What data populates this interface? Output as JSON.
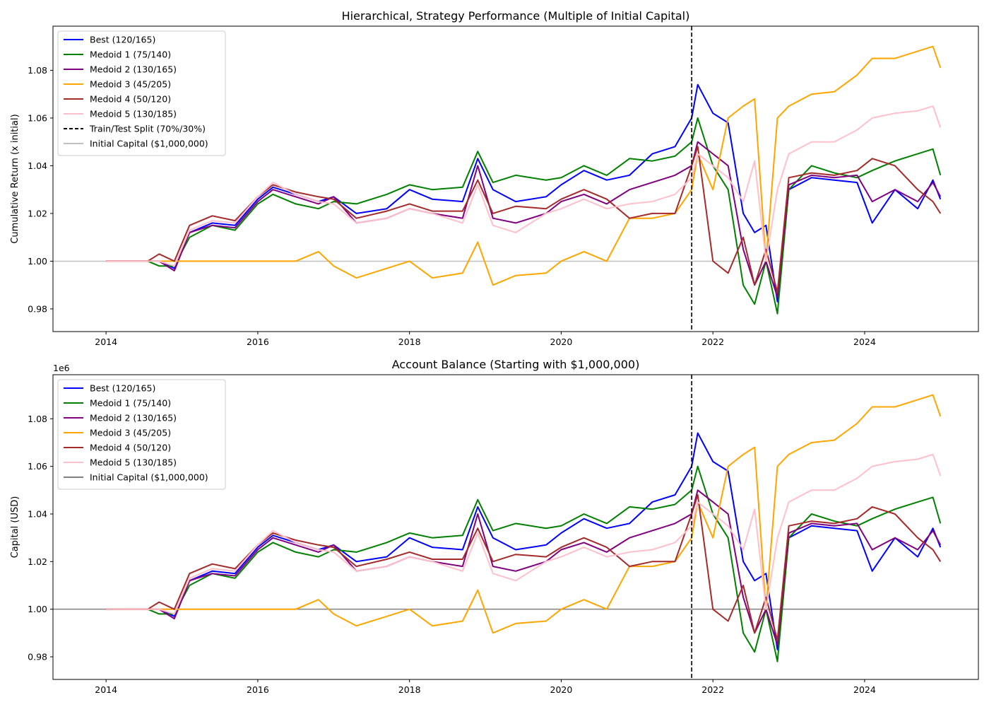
{
  "chart_data": [
    {
      "type": "line",
      "title": "Hierarchical, Strategy Performance (Multiple of Initial Capital)",
      "xlabel": "",
      "ylabel": "Cumulative Return (x initial)",
      "offset_text": "",
      "xlim": [
        2013.3,
        2025.5
      ],
      "ylim": [
        0.9705,
        1.0985
      ],
      "xticks": [
        "2014",
        "2016",
        "2018",
        "2020",
        "2022",
        "2024"
      ],
      "yticks": [
        "0.98",
        "1.00",
        "1.02",
        "1.04",
        "1.06",
        "1.08"
      ],
      "grid": false,
      "legend_position": "upper-left",
      "split_line": {
        "x": 2021.72,
        "label": "Train/Test Split (70%/30%)",
        "color": "#000000"
      },
      "initial_line": {
        "y": 1.0,
        "label": "Initial Capital ($1,000,000)",
        "color": "#c0c0c0"
      },
      "x": [
        2014.0,
        2014.55,
        2014.7,
        2014.9,
        2015.1,
        2015.4,
        2015.7,
        2016.0,
        2016.2,
        2016.5,
        2016.8,
        2017.0,
        2017.3,
        2017.7,
        2018.0,
        2018.3,
        2018.7,
        2018.9,
        2019.1,
        2019.4,
        2019.8,
        2020.0,
        2020.3,
        2020.6,
        2020.9,
        2021.2,
        2021.5,
        2021.72,
        2021.8,
        2022.0,
        2022.2,
        2022.4,
        2022.55,
        2022.7,
        2022.85,
        2023.0,
        2023.3,
        2023.6,
        2023.9,
        2024.1,
        2024.4,
        2024.7,
        2024.9,
        2025.0
      ],
      "series": [
        {
          "name": "Best (120/165)",
          "color": "#0000ff",
          "values": [
            1.0,
            1.0,
            1.0,
            0.997,
            1.012,
            1.016,
            1.015,
            1.026,
            1.031,
            1.028,
            1.025,
            1.027,
            1.02,
            1.022,
            1.03,
            1.026,
            1.025,
            1.043,
            1.03,
            1.025,
            1.027,
            1.032,
            1.038,
            1.034,
            1.036,
            1.045,
            1.048,
            1.06,
            1.074,
            1.062,
            1.058,
            1.02,
            1.012,
            1.015,
            0.983,
            1.03,
            1.035,
            1.034,
            1.033,
            1.016,
            1.03,
            1.022,
            1.034,
            1.026
          ]
        },
        {
          "name": "Medoid 1 (75/140)",
          "color": "#008000",
          "values": [
            1.0,
            1.0,
            0.998,
            0.998,
            1.01,
            1.015,
            1.013,
            1.024,
            1.028,
            1.024,
            1.022,
            1.025,
            1.024,
            1.028,
            1.032,
            1.03,
            1.031,
            1.046,
            1.033,
            1.036,
            1.034,
            1.035,
            1.04,
            1.036,
            1.043,
            1.042,
            1.044,
            1.05,
            1.06,
            1.04,
            1.03,
            0.99,
            0.982,
            1.0,
            0.978,
            1.03,
            1.04,
            1.037,
            1.035,
            1.038,
            1.042,
            1.045,
            1.047,
            1.036
          ]
        },
        {
          "name": "Medoid 2 (130/165)",
          "color": "#800080",
          "values": [
            1.0,
            1.0,
            1.0,
            0.996,
            1.012,
            1.015,
            1.014,
            1.025,
            1.03,
            1.027,
            1.024,
            1.027,
            1.016,
            1.018,
            1.022,
            1.02,
            1.018,
            1.04,
            1.018,
            1.016,
            1.02,
            1.025,
            1.028,
            1.024,
            1.03,
            1.033,
            1.036,
            1.04,
            1.05,
            1.045,
            1.04,
            1.005,
            0.99,
            1.0,
            0.985,
            1.032,
            1.036,
            1.035,
            1.036,
            1.025,
            1.03,
            1.025,
            1.033,
            1.027
          ]
        },
        {
          "name": "Medoid 3 (45/205)",
          "color": "#ffa500",
          "values": [
            1.0,
            1.0,
            1.0,
            1.0,
            1.0,
            1.0,
            1.0,
            1.0,
            1.0,
            1.0,
            1.004,
            0.998,
            0.993,
            0.997,
            1.0,
            0.993,
            0.995,
            1.008,
            0.99,
            0.994,
            0.995,
            1.0,
            1.004,
            1.0,
            1.018,
            1.018,
            1.02,
            1.03,
            1.045,
            1.03,
            1.06,
            1.065,
            1.068,
            1.0,
            1.06,
            1.065,
            1.07,
            1.071,
            1.078,
            1.085,
            1.085,
            1.088,
            1.09,
            1.081
          ]
        },
        {
          "name": "Medoid 4 (50/120)",
          "color": "#a52a2a",
          "values": [
            1.0,
            1.0,
            1.003,
            1.0,
            1.015,
            1.019,
            1.017,
            1.027,
            1.032,
            1.029,
            1.027,
            1.026,
            1.018,
            1.021,
            1.024,
            1.021,
            1.021,
            1.034,
            1.02,
            1.023,
            1.022,
            1.026,
            1.03,
            1.026,
            1.018,
            1.02,
            1.02,
            1.04,
            1.048,
            1.0,
            0.995,
            1.01,
            0.99,
            1.005,
            0.987,
            1.035,
            1.037,
            1.036,
            1.038,
            1.043,
            1.04,
            1.03,
            1.025,
            1.02
          ]
        },
        {
          "name": "Medoid 5 (130/185)",
          "color": "#ffc0cb",
          "values": [
            1.0,
            1.0,
            1.0,
            0.998,
            1.013,
            1.017,
            1.016,
            1.027,
            1.033,
            1.028,
            1.025,
            1.024,
            1.016,
            1.018,
            1.022,
            1.02,
            1.016,
            1.032,
            1.015,
            1.012,
            1.02,
            1.022,
            1.026,
            1.022,
            1.024,
            1.025,
            1.028,
            1.035,
            1.045,
            1.04,
            1.035,
            1.025,
            1.042,
            1.0,
            1.03,
            1.045,
            1.05,
            1.05,
            1.055,
            1.06,
            1.062,
            1.063,
            1.065,
            1.056
          ]
        }
      ]
    },
    {
      "type": "line",
      "title": "Account Balance (Starting with $1,000,000)",
      "xlabel": "",
      "ylabel": "Capital (USD)",
      "offset_text": "1e6",
      "xlim": [
        2013.3,
        2025.5
      ],
      "ylim": [
        0.9705,
        1.0985
      ],
      "xticks": [
        "2014",
        "2016",
        "2018",
        "2020",
        "2022",
        "2024"
      ],
      "yticks": [
        "0.98",
        "1.00",
        "1.02",
        "1.04",
        "1.06",
        "1.08"
      ],
      "grid": false,
      "legend_position": "upper-left",
      "split_line": {
        "x": 2021.72,
        "label": "",
        "color": "#000000"
      },
      "initial_line": {
        "y": 1.0,
        "label": "Initial Capital ($1,000,000)",
        "color": "#808080"
      },
      "x": [
        2014.0,
        2014.55,
        2014.7,
        2014.9,
        2015.1,
        2015.4,
        2015.7,
        2016.0,
        2016.2,
        2016.5,
        2016.8,
        2017.0,
        2017.3,
        2017.7,
        2018.0,
        2018.3,
        2018.7,
        2018.9,
        2019.1,
        2019.4,
        2019.8,
        2020.0,
        2020.3,
        2020.6,
        2020.9,
        2021.2,
        2021.5,
        2021.72,
        2021.8,
        2022.0,
        2022.2,
        2022.4,
        2022.55,
        2022.7,
        2022.85,
        2023.0,
        2023.3,
        2023.6,
        2023.9,
        2024.1,
        2024.4,
        2024.7,
        2024.9,
        2025.0
      ],
      "series": [
        {
          "name": "Best (120/165)",
          "color": "#0000ff",
          "values": [
            1.0,
            1.0,
            1.0,
            0.997,
            1.012,
            1.016,
            1.015,
            1.026,
            1.031,
            1.028,
            1.025,
            1.027,
            1.02,
            1.022,
            1.03,
            1.026,
            1.025,
            1.043,
            1.03,
            1.025,
            1.027,
            1.032,
            1.038,
            1.034,
            1.036,
            1.045,
            1.048,
            1.06,
            1.074,
            1.062,
            1.058,
            1.02,
            1.012,
            1.015,
            0.983,
            1.03,
            1.035,
            1.034,
            1.033,
            1.016,
            1.03,
            1.022,
            1.034,
            1.026
          ]
        },
        {
          "name": "Medoid 1 (75/140)",
          "color": "#008000",
          "values": [
            1.0,
            1.0,
            0.998,
            0.998,
            1.01,
            1.015,
            1.013,
            1.024,
            1.028,
            1.024,
            1.022,
            1.025,
            1.024,
            1.028,
            1.032,
            1.03,
            1.031,
            1.046,
            1.033,
            1.036,
            1.034,
            1.035,
            1.04,
            1.036,
            1.043,
            1.042,
            1.044,
            1.05,
            1.06,
            1.04,
            1.03,
            0.99,
            0.982,
            1.0,
            0.978,
            1.03,
            1.04,
            1.037,
            1.035,
            1.038,
            1.042,
            1.045,
            1.047,
            1.036
          ]
        },
        {
          "name": "Medoid 2 (130/165)",
          "color": "#800080",
          "values": [
            1.0,
            1.0,
            1.0,
            0.996,
            1.012,
            1.015,
            1.014,
            1.025,
            1.03,
            1.027,
            1.024,
            1.027,
            1.016,
            1.018,
            1.022,
            1.02,
            1.018,
            1.04,
            1.018,
            1.016,
            1.02,
            1.025,
            1.028,
            1.024,
            1.03,
            1.033,
            1.036,
            1.04,
            1.05,
            1.045,
            1.04,
            1.005,
            0.99,
            1.0,
            0.985,
            1.032,
            1.036,
            1.035,
            1.036,
            1.025,
            1.03,
            1.025,
            1.033,
            1.027
          ]
        },
        {
          "name": "Medoid 3 (45/205)",
          "color": "#ffa500",
          "values": [
            1.0,
            1.0,
            1.0,
            1.0,
            1.0,
            1.0,
            1.0,
            1.0,
            1.0,
            1.0,
            1.004,
            0.998,
            0.993,
            0.997,
            1.0,
            0.993,
            0.995,
            1.008,
            0.99,
            0.994,
            0.995,
            1.0,
            1.004,
            1.0,
            1.018,
            1.018,
            1.02,
            1.03,
            1.045,
            1.03,
            1.06,
            1.065,
            1.068,
            1.0,
            1.06,
            1.065,
            1.07,
            1.071,
            1.078,
            1.085,
            1.085,
            1.088,
            1.09,
            1.081
          ]
        },
        {
          "name": "Medoid 4 (50/120)",
          "color": "#a52a2a",
          "values": [
            1.0,
            1.0,
            1.003,
            1.0,
            1.015,
            1.019,
            1.017,
            1.027,
            1.032,
            1.029,
            1.027,
            1.026,
            1.018,
            1.021,
            1.024,
            1.021,
            1.021,
            1.034,
            1.02,
            1.023,
            1.022,
            1.026,
            1.03,
            1.026,
            1.018,
            1.02,
            1.02,
            1.04,
            1.048,
            1.0,
            0.995,
            1.01,
            0.99,
            1.005,
            0.987,
            1.035,
            1.037,
            1.036,
            1.038,
            1.043,
            1.04,
            1.03,
            1.025,
            1.02
          ]
        },
        {
          "name": "Medoid 5 (130/185)",
          "color": "#ffc0cb",
          "values": [
            1.0,
            1.0,
            1.0,
            0.998,
            1.013,
            1.017,
            1.016,
            1.027,
            1.033,
            1.028,
            1.025,
            1.024,
            1.016,
            1.018,
            1.022,
            1.02,
            1.016,
            1.032,
            1.015,
            1.012,
            1.02,
            1.022,
            1.026,
            1.022,
            1.024,
            1.025,
            1.028,
            1.035,
            1.045,
            1.04,
            1.035,
            1.025,
            1.042,
            1.0,
            1.03,
            1.045,
            1.05,
            1.05,
            1.055,
            1.06,
            1.062,
            1.063,
            1.065,
            1.056
          ]
        }
      ]
    }
  ]
}
